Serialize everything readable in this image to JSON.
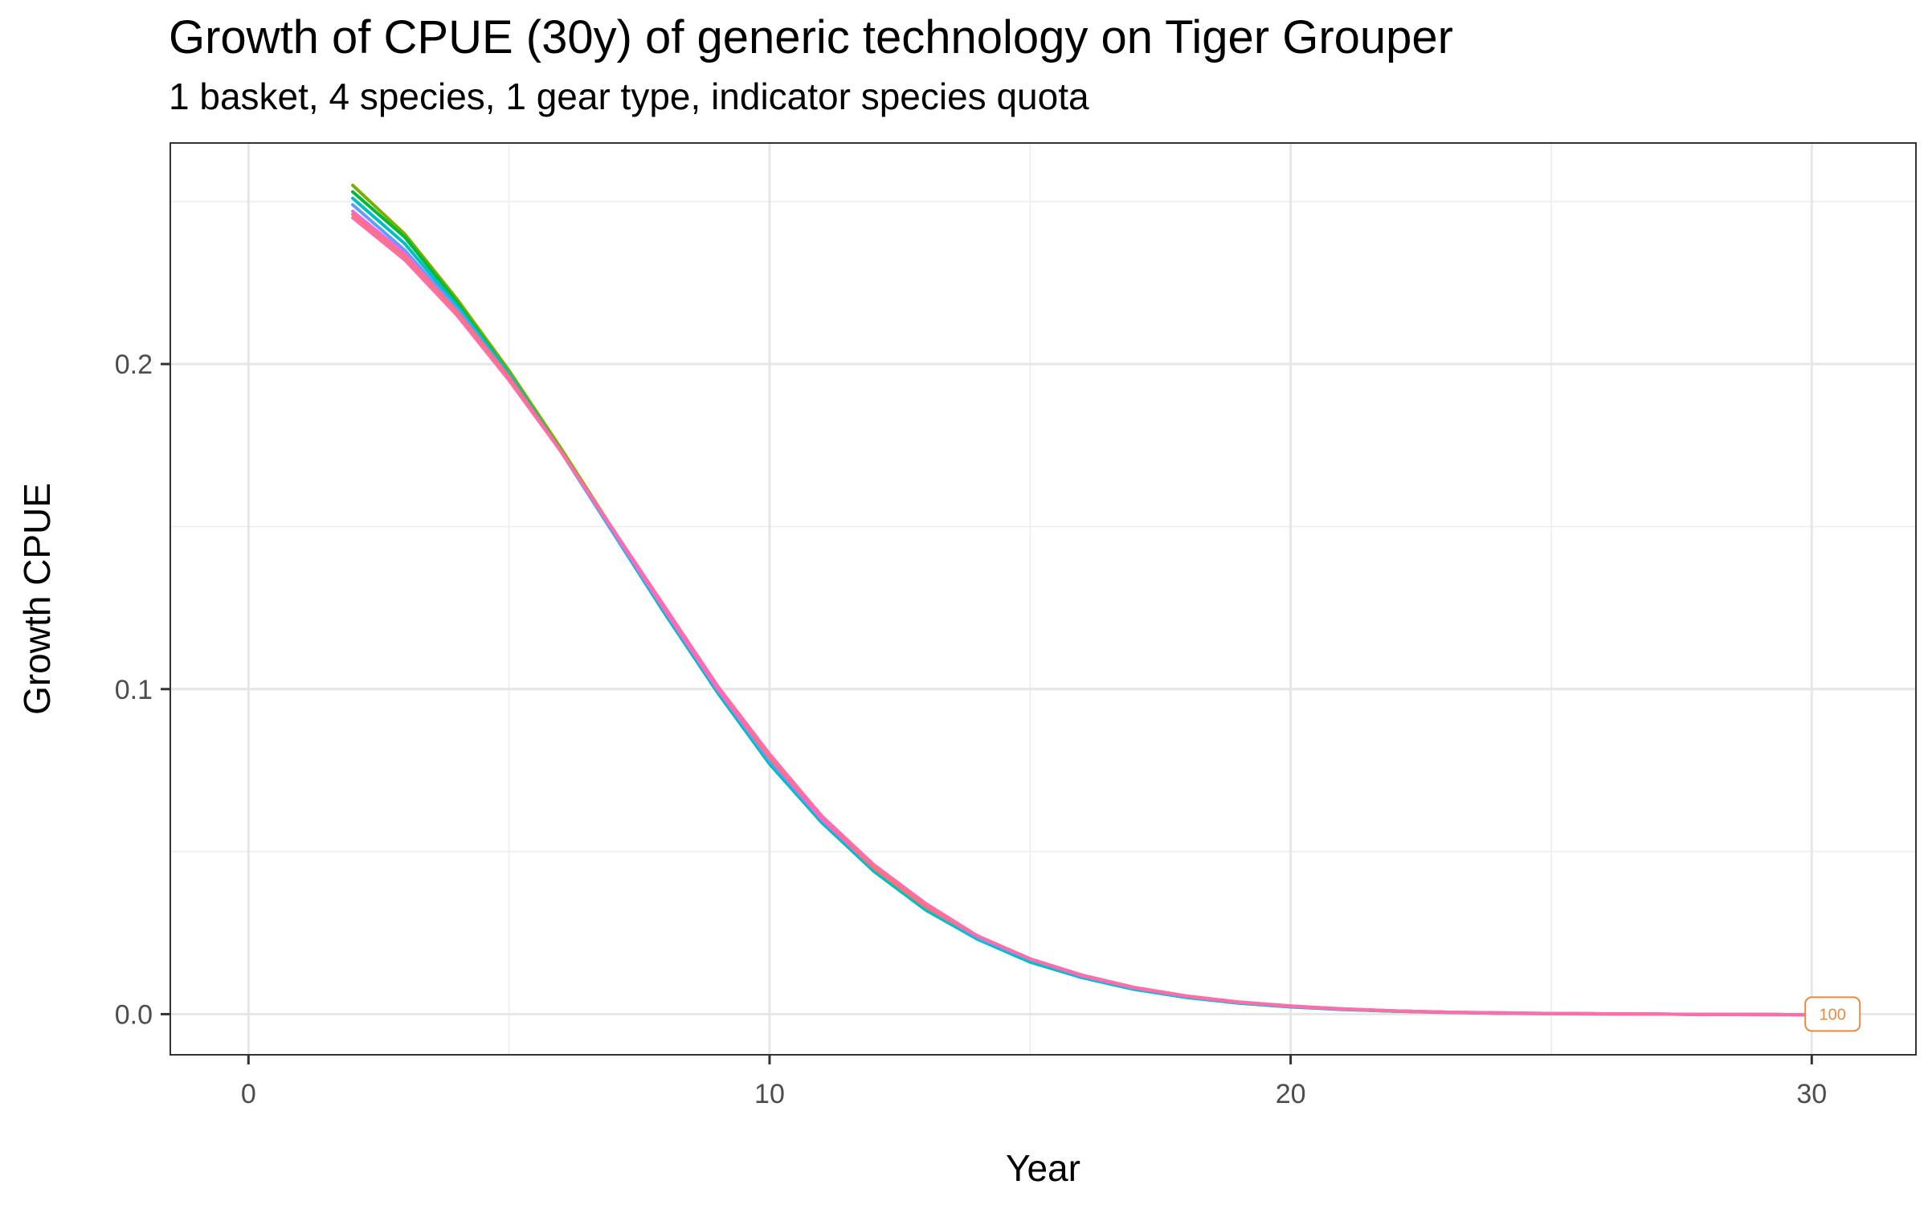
{
  "chart_data": {
    "type": "line",
    "title": "Growth of CPUE (30y) of generic technology on Tiger Grouper",
    "subtitle": "1 basket, 4 species, 1 gear type, indicator species quota",
    "xlabel": "Year",
    "ylabel": "Growth CPUE",
    "xlim": [
      -1.5,
      32
    ],
    "ylim": [
      -0.0125,
      0.268
    ],
    "x_ticks": [
      0,
      10,
      20,
      30
    ],
    "x_tick_labels": [
      "0",
      "10",
      "20",
      "30"
    ],
    "y_ticks": [
      0.0,
      0.1,
      0.2
    ],
    "y_tick_labels": [
      "0.0",
      "0.1",
      "0.2"
    ],
    "grid": true,
    "legend": "none",
    "x": [
      2,
      3,
      4,
      5,
      6,
      7,
      8,
      9,
      10,
      11,
      12,
      13,
      14,
      15,
      16,
      17,
      18,
      19,
      20,
      21,
      22,
      23,
      24,
      25,
      26,
      27,
      28,
      29,
      30
    ],
    "series": [
      {
        "color": "#7CAE00",
        "values": [
          0.255,
          0.24,
          0.22,
          0.198,
          0.174,
          0.149,
          0.124,
          0.099,
          0.077,
          0.059,
          0.044,
          0.032,
          0.023,
          0.0165,
          0.0115,
          0.0078,
          0.0052,
          0.0035,
          0.0023,
          0.0015,
          0.0009,
          0.0006,
          0.0003,
          0.0002,
          0.0001,
          0.0,
          -0.0001,
          -0.0001,
          -0.0002
        ]
      },
      {
        "color": "#00BA38",
        "values": [
          0.253,
          0.239,
          0.219,
          0.197,
          0.173,
          0.148,
          0.123,
          0.099,
          0.077,
          0.059,
          0.044,
          0.032,
          0.023,
          0.0165,
          0.0115,
          0.0078,
          0.0052,
          0.0035,
          0.0023,
          0.0015,
          0.0009,
          0.0006,
          0.0003,
          0.0002,
          0.0001,
          0.0,
          -0.0001,
          -0.0001,
          -0.0002
        ]
      },
      {
        "color": "#00BFC4",
        "values": [
          0.251,
          0.237,
          0.218,
          0.197,
          0.173,
          0.148,
          0.123,
          0.099,
          0.077,
          0.059,
          0.044,
          0.032,
          0.023,
          0.016,
          0.0112,
          0.0076,
          0.0051,
          0.0034,
          0.0022,
          0.0014,
          0.0009,
          0.0005,
          0.0003,
          0.0001,
          0.0,
          0.0,
          -0.0001,
          -0.0002,
          -0.0002
        ]
      },
      {
        "color": "#619CFF",
        "values": [
          0.249,
          0.235,
          0.217,
          0.196,
          0.173,
          0.148,
          0.124,
          0.1,
          0.078,
          0.06,
          0.045,
          0.033,
          0.0235,
          0.0168,
          0.0117,
          0.008,
          0.0054,
          0.0036,
          0.0024,
          0.0015,
          0.001,
          0.0006,
          0.0003,
          0.0002,
          0.0001,
          0.0,
          -0.0001,
          -0.0001,
          -0.0002
        ]
      },
      {
        "color": "#F564E3",
        "values": [
          0.247,
          0.234,
          0.216,
          0.196,
          0.173,
          0.149,
          0.124,
          0.1,
          0.079,
          0.06,
          0.045,
          0.033,
          0.024,
          0.017,
          0.0118,
          0.0081,
          0.0055,
          0.0037,
          0.0024,
          0.0016,
          0.001,
          0.0006,
          0.0003,
          0.0002,
          0.0001,
          0.0,
          -0.0001,
          -0.0001,
          -0.0002
        ]
      },
      {
        "color": "#F8766D",
        "values": [
          0.246,
          0.233,
          0.216,
          0.196,
          0.173,
          0.149,
          0.125,
          0.101,
          0.079,
          0.061,
          0.045,
          0.033,
          0.024,
          0.017,
          0.012,
          0.0082,
          0.0056,
          0.0037,
          0.0025,
          0.0016,
          0.001,
          0.0006,
          0.0004,
          0.0002,
          0.0001,
          0.0,
          -0.0001,
          -0.0001,
          -0.0002
        ]
      },
      {
        "color": "#FF6EA8",
        "values": [
          0.245,
          0.232,
          0.215,
          0.195,
          0.173,
          0.149,
          0.125,
          0.101,
          0.08,
          0.061,
          0.046,
          0.034,
          0.024,
          0.017,
          0.012,
          0.0082,
          0.0056,
          0.0037,
          0.0025,
          0.0016,
          0.001,
          0.0006,
          0.0004,
          0.0002,
          0.0001,
          0.0,
          -0.0001,
          -0.0001,
          -0.0002
        ]
      }
    ],
    "end_label": {
      "text": "100",
      "x": 30.4,
      "y": 0.0,
      "color": "#E68A45"
    }
  }
}
